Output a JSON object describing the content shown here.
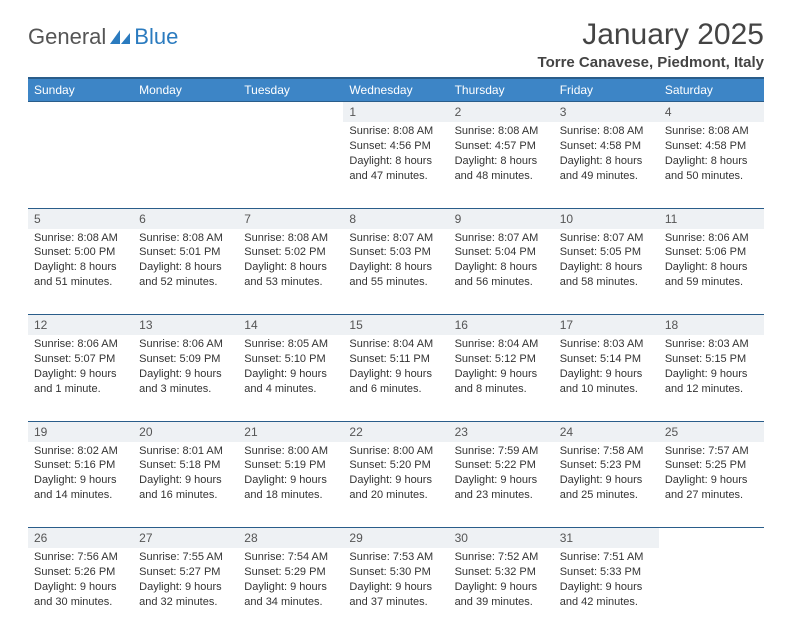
{
  "logo": {
    "prefix": "General",
    "suffix": "Blue"
  },
  "title": "January 2025",
  "location": "Torre Canavese, Piedmont, Italy",
  "colors": {
    "header_bg": "#3d85c6",
    "header_border": "#2a5d8a",
    "daynum_bg": "#eef1f4",
    "logo_accent": "#2b7bbf"
  },
  "weekdays": [
    "Sunday",
    "Monday",
    "Tuesday",
    "Wednesday",
    "Thursday",
    "Friday",
    "Saturday"
  ],
  "weeks": [
    [
      null,
      null,
      null,
      {
        "n": "1",
        "sunrise": "8:08 AM",
        "sunset": "4:56 PM",
        "daylight": "8 hours and 47 minutes."
      },
      {
        "n": "2",
        "sunrise": "8:08 AM",
        "sunset": "4:57 PM",
        "daylight": "8 hours and 48 minutes."
      },
      {
        "n": "3",
        "sunrise": "8:08 AM",
        "sunset": "4:58 PM",
        "daylight": "8 hours and 49 minutes."
      },
      {
        "n": "4",
        "sunrise": "8:08 AM",
        "sunset": "4:58 PM",
        "daylight": "8 hours and 50 minutes."
      }
    ],
    [
      {
        "n": "5",
        "sunrise": "8:08 AM",
        "sunset": "5:00 PM",
        "daylight": "8 hours and 51 minutes."
      },
      {
        "n": "6",
        "sunrise": "8:08 AM",
        "sunset": "5:01 PM",
        "daylight": "8 hours and 52 minutes."
      },
      {
        "n": "7",
        "sunrise": "8:08 AM",
        "sunset": "5:02 PM",
        "daylight": "8 hours and 53 minutes."
      },
      {
        "n": "8",
        "sunrise": "8:07 AM",
        "sunset": "5:03 PM",
        "daylight": "8 hours and 55 minutes."
      },
      {
        "n": "9",
        "sunrise": "8:07 AM",
        "sunset": "5:04 PM",
        "daylight": "8 hours and 56 minutes."
      },
      {
        "n": "10",
        "sunrise": "8:07 AM",
        "sunset": "5:05 PM",
        "daylight": "8 hours and 58 minutes."
      },
      {
        "n": "11",
        "sunrise": "8:06 AM",
        "sunset": "5:06 PM",
        "daylight": "8 hours and 59 minutes."
      }
    ],
    [
      {
        "n": "12",
        "sunrise": "8:06 AM",
        "sunset": "5:07 PM",
        "daylight": "9 hours and 1 minute."
      },
      {
        "n": "13",
        "sunrise": "8:06 AM",
        "sunset": "5:09 PM",
        "daylight": "9 hours and 3 minutes."
      },
      {
        "n": "14",
        "sunrise": "8:05 AM",
        "sunset": "5:10 PM",
        "daylight": "9 hours and 4 minutes."
      },
      {
        "n": "15",
        "sunrise": "8:04 AM",
        "sunset": "5:11 PM",
        "daylight": "9 hours and 6 minutes."
      },
      {
        "n": "16",
        "sunrise": "8:04 AM",
        "sunset": "5:12 PM",
        "daylight": "9 hours and 8 minutes."
      },
      {
        "n": "17",
        "sunrise": "8:03 AM",
        "sunset": "5:14 PM",
        "daylight": "9 hours and 10 minutes."
      },
      {
        "n": "18",
        "sunrise": "8:03 AM",
        "sunset": "5:15 PM",
        "daylight": "9 hours and 12 minutes."
      }
    ],
    [
      {
        "n": "19",
        "sunrise": "8:02 AM",
        "sunset": "5:16 PM",
        "daylight": "9 hours and 14 minutes."
      },
      {
        "n": "20",
        "sunrise": "8:01 AM",
        "sunset": "5:18 PM",
        "daylight": "9 hours and 16 minutes."
      },
      {
        "n": "21",
        "sunrise": "8:00 AM",
        "sunset": "5:19 PM",
        "daylight": "9 hours and 18 minutes."
      },
      {
        "n": "22",
        "sunrise": "8:00 AM",
        "sunset": "5:20 PM",
        "daylight": "9 hours and 20 minutes."
      },
      {
        "n": "23",
        "sunrise": "7:59 AM",
        "sunset": "5:22 PM",
        "daylight": "9 hours and 23 minutes."
      },
      {
        "n": "24",
        "sunrise": "7:58 AM",
        "sunset": "5:23 PM",
        "daylight": "9 hours and 25 minutes."
      },
      {
        "n": "25",
        "sunrise": "7:57 AM",
        "sunset": "5:25 PM",
        "daylight": "9 hours and 27 minutes."
      }
    ],
    [
      {
        "n": "26",
        "sunrise": "7:56 AM",
        "sunset": "5:26 PM",
        "daylight": "9 hours and 30 minutes."
      },
      {
        "n": "27",
        "sunrise": "7:55 AM",
        "sunset": "5:27 PM",
        "daylight": "9 hours and 32 minutes."
      },
      {
        "n": "28",
        "sunrise": "7:54 AM",
        "sunset": "5:29 PM",
        "daylight": "9 hours and 34 minutes."
      },
      {
        "n": "29",
        "sunrise": "7:53 AM",
        "sunset": "5:30 PM",
        "daylight": "9 hours and 37 minutes."
      },
      {
        "n": "30",
        "sunrise": "7:52 AM",
        "sunset": "5:32 PM",
        "daylight": "9 hours and 39 minutes."
      },
      {
        "n": "31",
        "sunrise": "7:51 AM",
        "sunset": "5:33 PM",
        "daylight": "9 hours and 42 minutes."
      },
      null
    ]
  ],
  "labels": {
    "sunrise": "Sunrise:",
    "sunset": "Sunset:",
    "daylight": "Daylight:"
  }
}
